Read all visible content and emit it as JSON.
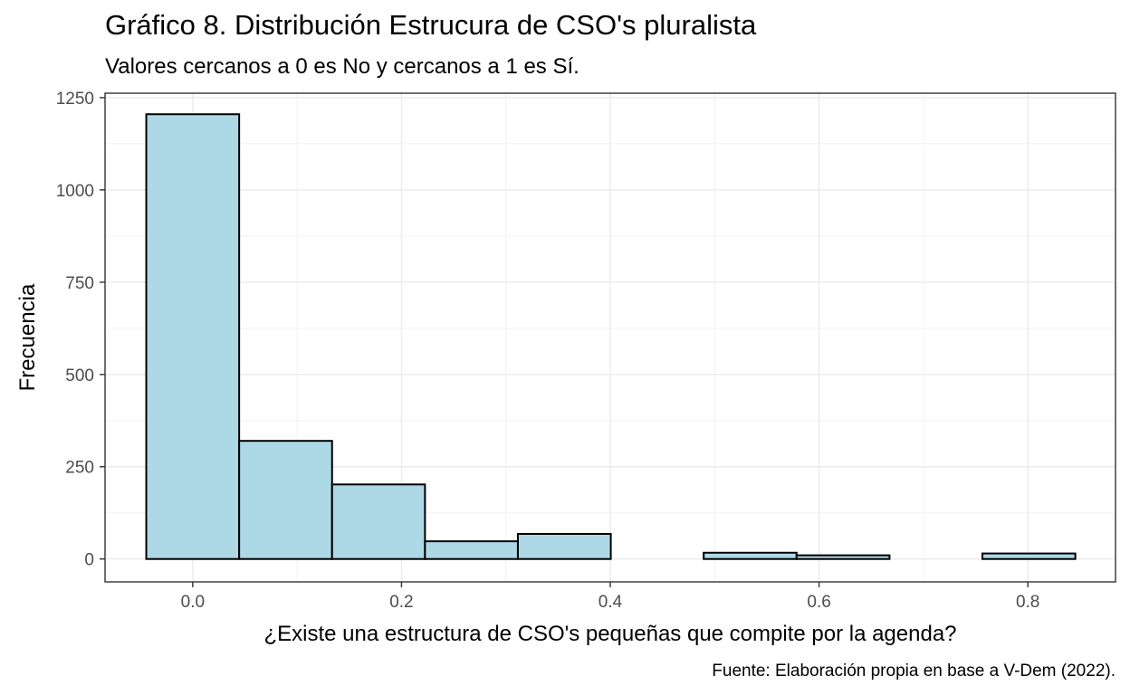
{
  "chart_data": {
    "type": "bar",
    "title": "Gráfico 8. Distribución Estrucura de CSO's pluralista",
    "subtitle": "Valores cercanos a 0 es No y cercanos a 1 es Sí.",
    "caption": "Fuente: Elaboración propia en base a V-Dem (2022).",
    "xlabel": "¿Existe una estructura de CSO's pequeñas que compite por la agenda?",
    "ylabel": "Frecuencia",
    "xlim": [
      -0.084,
      0.884
    ],
    "ylim": [
      -62,
      1262
    ],
    "x_ticks": [
      0.0,
      0.2,
      0.4,
      0.6,
      0.8
    ],
    "x_tick_labels": [
      "0.0",
      "0.2",
      "0.4",
      "0.6",
      "0.8"
    ],
    "y_ticks": [
      0,
      250,
      500,
      750,
      1000,
      1250
    ],
    "y_tick_labels": [
      "0",
      "250",
      "500",
      "750",
      "1000",
      "1250"
    ],
    "grid": true,
    "bin_edges": [
      -0.0445,
      0.0445,
      0.1335,
      0.2225,
      0.3115,
      0.4005,
      0.4895,
      0.5785,
      0.6675,
      0.7565,
      0.8455
    ],
    "values": [
      1205,
      320,
      202,
      48,
      68,
      0,
      17,
      10,
      0,
      15
    ],
    "fill_color": "#add8e6",
    "border_color": "#000000"
  }
}
